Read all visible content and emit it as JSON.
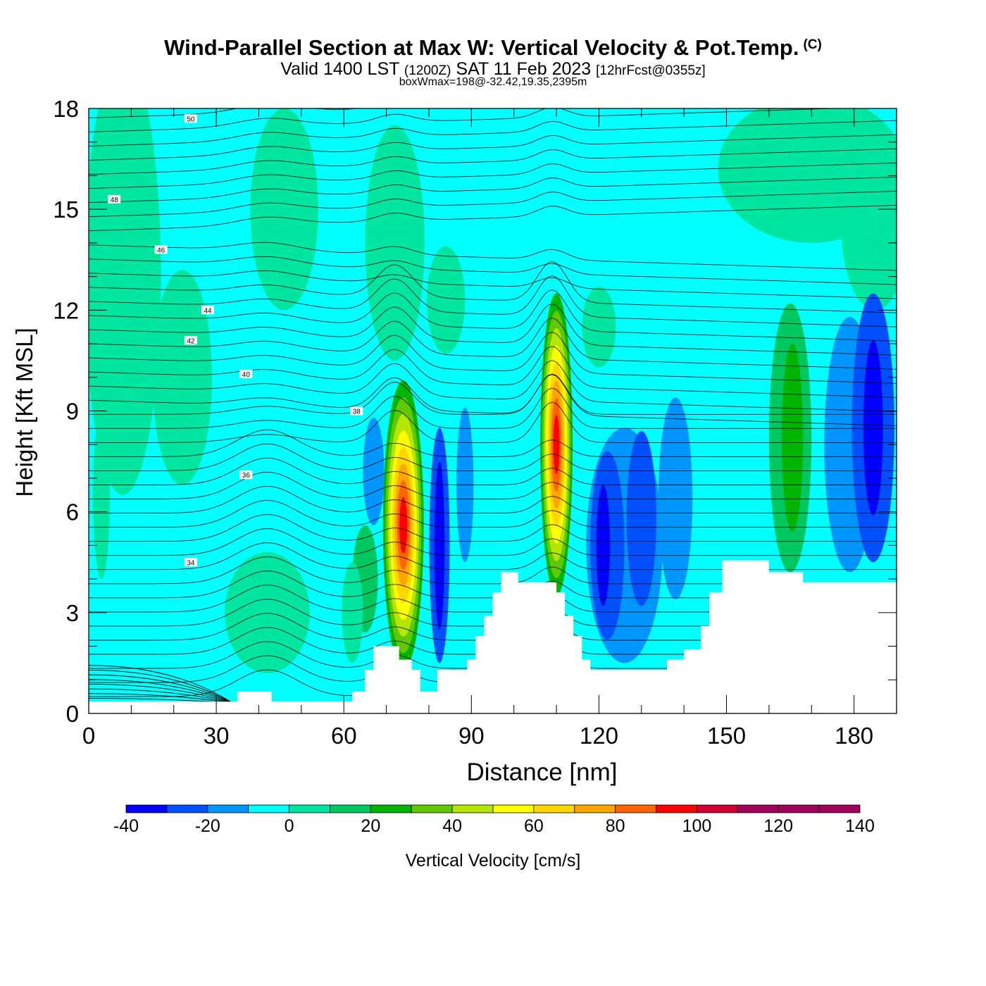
{
  "title": {
    "main": "Wind-Parallel Section at Max W: Vertical Velocity & Pot.Temp.",
    "mark": "(C)",
    "valid_prefix": "Valid 1400 LST",
    "valid_zulu": "(1200Z)",
    "valid_date": "SAT 11 Feb 2023",
    "forecast": "[12hrFcst@0355z]",
    "box_wmax": "boxWmax=198@-32.42,19.35,2395m"
  },
  "colorbar": {
    "label": "Vertical Velocity [cm/s]",
    "ticks": [
      "-40",
      "-20",
      "0",
      "20",
      "40",
      "60",
      "80",
      "100",
      "120",
      "140"
    ],
    "colors": [
      "#0000ff",
      "#0050ff",
      "#0096ff",
      "#00ffff",
      "#00e6a0",
      "#00c860",
      "#00b400",
      "#60c800",
      "#b4e600",
      "#ffff00",
      "#ffd700",
      "#ffa500",
      "#ff6400",
      "#ff0000",
      "#d20032",
      "#a0005a"
    ]
  },
  "chart_data": {
    "type": "heatmap",
    "xlabel": "Distance [nm]",
    "ylabel": "Height [Kft MSL]",
    "xlim": [
      0,
      190
    ],
    "ylim": [
      0,
      18
    ],
    "x_ticks": [
      0,
      30,
      60,
      90,
      120,
      150,
      180
    ],
    "y_ticks": [
      0,
      3,
      6,
      9,
      12,
      15,
      18
    ],
    "background_value": "0 to 10 cm/s",
    "terrain_ceiling_kft": [
      [
        0,
        0.35
      ],
      [
        35,
        0.35
      ],
      [
        35,
        0.65
      ],
      [
        43,
        0.65
      ],
      [
        43,
        0.35
      ],
      [
        62,
        0.35
      ],
      [
        62,
        0.65
      ],
      [
        65,
        0.65
      ],
      [
        65,
        1.3
      ],
      [
        67,
        1.3
      ],
      [
        67,
        2.0
      ],
      [
        73,
        2.0
      ],
      [
        73,
        1.6
      ],
      [
        76,
        1.6
      ],
      [
        76,
        1.3
      ],
      [
        78,
        1.3
      ],
      [
        78,
        0.65
      ],
      [
        82,
        0.65
      ],
      [
        82,
        1.3
      ],
      [
        89,
        1.3
      ],
      [
        89,
        1.6
      ],
      [
        91,
        1.6
      ],
      [
        91,
        2.3
      ],
      [
        93,
        2.3
      ],
      [
        93,
        2.9
      ],
      [
        95,
        2.9
      ],
      [
        95,
        3.6
      ],
      [
        97,
        3.6
      ],
      [
        97,
        4.2
      ],
      [
        101,
        4.2
      ],
      [
        101,
        3.9
      ],
      [
        110,
        3.9
      ],
      [
        110,
        3.6
      ],
      [
        112,
        3.6
      ],
      [
        112,
        2.9
      ],
      [
        114,
        2.9
      ],
      [
        114,
        2.3
      ],
      [
        116,
        2.3
      ],
      [
        116,
        1.6
      ],
      [
        118,
        1.6
      ],
      [
        118,
        1.3
      ],
      [
        136,
        1.3
      ],
      [
        136,
        1.6
      ],
      [
        140,
        1.6
      ],
      [
        140,
        1.9
      ],
      [
        144,
        1.9
      ],
      [
        144,
        2.6
      ],
      [
        146,
        2.6
      ],
      [
        146,
        3.6
      ],
      [
        149,
        3.6
      ],
      [
        149,
        4.55
      ],
      [
        160,
        4.55
      ],
      [
        160,
        4.2
      ],
      [
        168,
        4.2
      ],
      [
        168,
        3.9
      ],
      [
        190,
        3.9
      ]
    ],
    "vertical_velocity_cells": [
      {
        "name": "updraft-A",
        "x_range": [
          69,
          79
        ],
        "z_range": [
          1.6,
          9.9
        ],
        "max_cm_s": 120
      },
      {
        "name": "updraft-B",
        "x_range": [
          106,
          114
        ],
        "z_range": [
          3.6,
          12.5
        ],
        "max_cm_s": 120
      },
      {
        "name": "downdraft-C",
        "x_range": [
          79,
          86
        ],
        "z_range": [
          2.0,
          8.2
        ],
        "min_cm_s": -30
      },
      {
        "name": "downdraft-D",
        "x_range": [
          117,
          141
        ],
        "z_range": [
          1.6,
          8.9
        ],
        "min_cm_s": -30
      },
      {
        "name": "downdraft-E",
        "x_range": [
          179,
          190
        ],
        "z_range": [
          4.6,
          12.7
        ],
        "min_cm_s": -30
      },
      {
        "name": "ascent-F",
        "x_range": [
          160,
          171
        ],
        "z_range": [
          4.2,
          12.3
        ],
        "max_cm_s": 30
      },
      {
        "name": "ascent-G",
        "x_range": [
          0,
          25
        ],
        "z_range": [
          6.0,
          18.0
        ],
        "max_cm_s": 10
      },
      {
        "name": "ascent-H",
        "x_range": [
          150,
          190
        ],
        "z_range": [
          13.5,
          18.0
        ],
        "max_cm_s": 10
      },
      {
        "name": "ascent-I",
        "x_range": [
          79,
          90
        ],
        "z_range": [
          10.8,
          13.8
        ],
        "max_cm_s": 10
      }
    ],
    "theta_contours_c": [
      {
        "label": "34",
        "z_left_kft": 4.5,
        "label_x": 24
      },
      {
        "label": "36",
        "z_left_kft": 7.1,
        "label_x": 37
      },
      {
        "label": "38",
        "z_left_kft": 9.0,
        "label_x": 63
      },
      {
        "label": "40",
        "z_left_kft": 10.1,
        "label_x": 37
      },
      {
        "label": "42",
        "z_left_kft": 11.1,
        "label_x": 24
      },
      {
        "label": "44",
        "z_left_kft": 12.0,
        "label_x": 28
      },
      {
        "label": "46",
        "z_left_kft": 13.8,
        "label_x": 17
      },
      {
        "label": "48",
        "z_left_kft": 15.3,
        "label_x": 6
      },
      {
        "label": "50",
        "z_left_kft": 17.7,
        "label_x": 24
      }
    ]
  }
}
